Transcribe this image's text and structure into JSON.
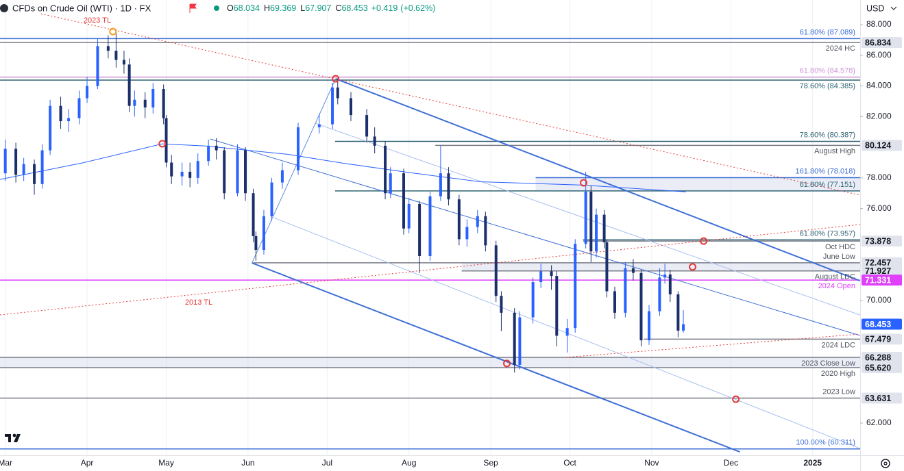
{
  "header": {
    "symbol": "CFDs on Crude Oil (WTI) · 1D · FX",
    "ohlc": [
      {
        "key": "O",
        "value": 68.034
      },
      {
        "key": "H",
        "value": 69.369
      },
      {
        "key": "L",
        "value": 67.907
      },
      {
        "key": "C",
        "value": 68.453
      }
    ],
    "change": {
      "value": 0.419,
      "label": "+0.419"
    },
    "change_pct": {
      "value": 0.62,
      "label": "(+0.62%)"
    },
    "currency": "USD"
  },
  "chart_data": {
    "type": "candlestick",
    "xlim": [
      -2,
      324
    ],
    "ylim": [
      59.9,
      89.61
    ],
    "xticks": [
      {
        "value": 0,
        "label": "Mar"
      },
      {
        "value": 31,
        "label": "Apr"
      },
      {
        "value": 61,
        "label": "May"
      },
      {
        "value": 92,
        "label": "Jun"
      },
      {
        "value": 122,
        "label": "Jul"
      },
      {
        "value": 153,
        "label": "Aug"
      },
      {
        "value": 184,
        "label": "Sep"
      },
      {
        "value": 214,
        "label": "Oct"
      },
      {
        "value": 245,
        "label": "Nov"
      },
      {
        "value": 275,
        "label": "Dec"
      },
      {
        "value": 306,
        "label": "2025"
      }
    ],
    "yticks": [
      {
        "value": 88,
        "label": "88.000"
      },
      {
        "value": 86,
        "label": "86.000"
      },
      {
        "value": 84,
        "label": "84.000"
      },
      {
        "value": 82,
        "label": "82.000"
      },
      {
        "value": 78,
        "label": "78.000"
      },
      {
        "value": 76,
        "label": "76.000"
      },
      {
        "value": 70,
        "label": "70.000"
      },
      {
        "value": 62,
        "label": "62.000"
      }
    ],
    "grid": "vertical",
    "up_color": "#2962ff",
    "down_color": "#1a2f6b",
    "x": [
      0,
      4,
      7,
      11,
      14,
      17,
      21,
      24,
      28,
      31,
      35,
      39,
      42,
      45,
      47,
      49,
      53,
      56,
      60,
      61,
      63,
      67,
      70,
      73,
      77,
      80,
      83,
      88,
      91,
      94,
      95,
      98,
      101,
      105,
      111,
      119,
      124,
      126,
      131,
      137,
      140,
      144,
      146,
      151,
      153,
      157,
      161,
      165,
      168,
      172,
      175,
      179,
      182,
      186,
      188,
      193,
      195,
      200,
      203,
      207,
      209,
      213,
      216,
      220,
      222,
      224,
      227,
      228,
      231,
      235,
      238,
      241,
      244,
      248,
      250,
      252,
      255,
      257
    ],
    "open": [
      78.3,
      79.9,
      78.2,
      78.9,
      77.6,
      79.8,
      82.7,
      81.7,
      81.9,
      83.2,
      84.0,
      86.6,
      86.3,
      85.7,
      85.4,
      82.7,
      83.1,
      82.6,
      83.8,
      81.9,
      79.0,
      78.1,
      78.4,
      78.0,
      79.1,
      80.1,
      79.8,
      77.0,
      79.8,
      77.0,
      74.2,
      73.3,
      75.5,
      77.7,
      78.5,
      81.3,
      81.5,
      83.9,
      83.2,
      82.1,
      80.7,
      80.1,
      77.0,
      78.3,
      74.7,
      76.3,
      72.9,
      76.8,
      78.3,
      76.6,
      74.0,
      74.8,
      75.5,
      73.6,
      70.3,
      69.2,
      65.8,
      68.9,
      71.2,
      71.9,
      71.6,
      67.7,
      68.2,
      73.7,
      77.1,
      73.2,
      75.6,
      73.8,
      70.6,
      69.2,
      72.1,
      71.8,
      67.4,
      69.3,
      71.5,
      71.7,
      70.4,
      68.034
    ],
    "high": [
      80.5,
      80.3,
      79.3,
      79.2,
      80.2,
      83.1,
      83.3,
      82.5,
      83.7,
      84.6,
      87.1,
      87.3,
      87.7,
      86.3,
      85.8,
      83.7,
      83.6,
      84.2,
      84.1,
      82.1,
      79.5,
      79.0,
      79.0,
      79.6,
      80.5,
      80.6,
      80.0,
      80.2,
      80.0,
      77.3,
      74.5,
      75.9,
      78.0,
      79.0,
      81.6,
      82.2,
      84.2,
      84.5,
      83.6,
      82.5,
      81.3,
      80.4,
      78.7,
      78.6,
      76.7,
      76.5,
      77.1,
      80.1,
      78.7,
      76.9,
      75.3,
      75.9,
      75.8,
      73.9,
      70.6,
      69.5,
      69.3,
      71.5,
      72.4,
      72.3,
      71.9,
      68.8,
      74.0,
      78.4,
      77.5,
      76.0,
      75.9,
      74.0,
      70.9,
      72.5,
      72.7,
      72.0,
      69.7,
      72.1,
      72.4,
      72.0,
      70.6,
      69.369
    ],
    "low": [
      77.8,
      77.7,
      77.8,
      76.9,
      77.3,
      79.5,
      81.2,
      81.0,
      81.5,
      82.9,
      83.8,
      85.8,
      85.2,
      84.8,
      82.3,
      82.0,
      81.9,
      82.2,
      81.5,
      78.7,
      77.6,
      77.5,
      77.4,
      77.6,
      78.8,
      79.2,
      76.6,
      76.8,
      76.5,
      73.8,
      72.6,
      73.0,
      75.2,
      77.3,
      78.2,
      80.9,
      81.2,
      82.8,
      81.7,
      80.3,
      79.6,
      76.6,
      76.7,
      74.3,
      74.4,
      71.8,
      72.6,
      76.5,
      76.2,
      73.6,
      73.5,
      74.4,
      73.2,
      69.9,
      68.0,
      65.3,
      65.5,
      68.5,
      70.8,
      70.7,
      67.0,
      66.6,
      67.9,
      73.4,
      72.5,
      72.8,
      73.4,
      70.2,
      68.8,
      68.9,
      71.3,
      67.0,
      67.1,
      69.0,
      71.1,
      69.9,
      67.6,
      67.907
    ],
    "close": [
      79.9,
      78.2,
      78.9,
      77.6,
      79.8,
      82.7,
      81.7,
      81.9,
      83.2,
      84.0,
      86.6,
      86.3,
      85.7,
      85.4,
      82.7,
      83.1,
      82.6,
      83.8,
      81.9,
      79.0,
      78.1,
      78.4,
      78.0,
      79.1,
      80.1,
      79.8,
      77.0,
      79.8,
      77.0,
      74.2,
      73.3,
      75.5,
      77.7,
      78.5,
      81.3,
      81.5,
      83.9,
      83.2,
      82.1,
      80.7,
      80.1,
      77.0,
      78.3,
      74.7,
      76.3,
      72.9,
      76.8,
      78.3,
      76.6,
      74.0,
      74.8,
      75.5,
      73.6,
      70.3,
      69.2,
      65.8,
      68.9,
      71.2,
      71.9,
      71.6,
      67.7,
      68.2,
      73.7,
      77.1,
      73.2,
      75.6,
      73.8,
      70.6,
      69.2,
      72.1,
      71.8,
      67.4,
      69.3,
      71.5,
      71.7,
      70.4,
      68.034,
      68.453
    ],
    "last_price_color": "#2962ff",
    "sma": {
      "color": "#2962ff",
      "x": [
        -2,
        29,
        59.5,
        76,
        107,
        128,
        154,
        180,
        219,
        258
      ],
      "values": [
        77.9,
        78.97,
        80.22,
        80.08,
        79.54,
        78.96,
        78.33,
        77.75,
        77.53,
        77.09
      ]
    },
    "levels": [
      {
        "value": 87.089,
        "color": "#3d6fd6",
        "note": "61.80% (87.089)",
        "note_pos": "above"
      },
      {
        "value": 86.834,
        "color": "#787b86",
        "note": "2024 HC",
        "note_pos": "below",
        "tag": "86.834"
      },
      {
        "value": 84.578,
        "color": "#ce93d8",
        "note": "61.80% (84.578)",
        "note_pos": "above"
      },
      {
        "value": 84.385,
        "color": "#2e6373",
        "note": "78.60% (84.385)",
        "note_pos": "below"
      },
      {
        "value": 80.387,
        "color": "#2e6373",
        "note": "78.60% (80.387)",
        "note_pos": "above",
        "from": 125
      },
      {
        "value": 80.124,
        "color": "#787b86",
        "note": "August High",
        "note_pos": "below",
        "tag": "80.124",
        "from": 163
      },
      {
        "value": 78.018,
        "color": "#3d6fd6",
        "note": "161.80% (78.018)",
        "note_pos": "above",
        "from": 201,
        "fill_to_next": true
      },
      {
        "value": 77.151,
        "color": "#2e6373",
        "note": "61.80% (77.151)",
        "note_pos": "above",
        "from": 125
      },
      {
        "value": 73.957,
        "color": "#2e6373",
        "note": "61.80% (73.957)",
        "note_pos": "above",
        "from": 219
      },
      {
        "value": 73.878,
        "color": "#787b86",
        "note": "Oct HDC",
        "note_pos": "below",
        "tag": "73.878",
        "from": 219
      },
      {
        "value": 72.457,
        "color": "#787b86",
        "note": "June Low",
        "note_pos": "above",
        "tag": "72.457",
        "from": 94,
        "fill_to_next": true
      },
      {
        "value": 71.927,
        "color": "#787b86",
        "note": "August LDC",
        "note_pos": "below",
        "tag": "71.927",
        "from": 173
      },
      {
        "value": 71.331,
        "color": "#e040fb",
        "note": "2024 Open",
        "note_pos": "below",
        "tag": "71.331"
      },
      {
        "value": 67.479,
        "color": "#787b86",
        "note": "2024 LDC",
        "note_pos": "below",
        "tag": "67.479",
        "from": 242
      },
      {
        "value": 66.288,
        "color": "#787b86",
        "note": "2023 Close Low",
        "note_pos": "below",
        "tag": "66.288",
        "fill_to_next": true
      },
      {
        "value": 65.62,
        "color": "#787b86",
        "note": "2020 High",
        "note_pos": "below",
        "tag": "65.620"
      },
      {
        "value": 63.631,
        "color": "#787b86",
        "note": "2023 Low",
        "note_pos": "above",
        "tag": "63.631"
      },
      {
        "value": 60.311,
        "color": "#3d6fd6",
        "note": "100.00% (60.311)",
        "note_pos": "above"
      }
    ],
    "trendlines": [
      {
        "points": [
          [
            125.2,
            84.47
          ],
          [
            323.9,
            71.29
          ]
        ],
        "color": "#3d6fd6",
        "width": 2
      },
      {
        "points": [
          [
            93.5,
            72.45
          ],
          [
            278.4,
            60.12
          ]
        ],
        "color": "#3d6fd6",
        "width": 2
      },
      {
        "points": [
          [
            77.7,
            80.54
          ],
          [
            323.9,
            67.72
          ]
        ],
        "color": "#3d6fd6",
        "width": 1
      },
      {
        "points": [
          [
            117.4,
            81.57
          ],
          [
            323.9,
            69.06
          ]
        ],
        "color": "#a9bff0",
        "width": 1
      },
      {
        "points": [
          [
            101.8,
            75.4
          ],
          [
            323.9,
            60.35
          ]
        ],
        "color": "#a9bff0",
        "width": 1
      },
      {
        "points": [
          [
            93.5,
            72.45
          ],
          [
            125.2,
            84.47
          ]
        ],
        "color": "#5b8de0",
        "width": 1
      },
      {
        "points": [
          [
            13.5,
            88.71
          ],
          [
            323.9,
            76.88
          ]
        ],
        "color": "#e53935",
        "width": 1,
        "dash": true
      },
      {
        "points": [
          [
            -2,
            69.06
          ],
          [
            323.9,
            74.96
          ]
        ],
        "color": "#e53935",
        "width": 1,
        "dash": true
      },
      {
        "points": [
          [
            212.5,
            66.29
          ],
          [
            323.9,
            67.81
          ]
        ],
        "color": "#e53935",
        "width": 1,
        "dash": true
      }
    ],
    "annotations": [
      {
        "text": "2023 TL",
        "color": "#e53935"
      },
      {
        "text": "2013 TL",
        "color": "#e53935"
      }
    ],
    "markers": [
      {
        "x": 40.8,
        "y": 87.55,
        "color": "#f59c1a"
      },
      {
        "x": 125.2,
        "y": 84.47,
        "color": "#e53935"
      },
      {
        "x": 59.5,
        "y": 80.23,
        "color": "#e53935"
      },
      {
        "x": 219.2,
        "y": 77.68,
        "color": "#e53935"
      },
      {
        "x": 264.7,
        "y": 73.88,
        "color": "#e53935"
      },
      {
        "x": 260.5,
        "y": 72.19,
        "color": "#e53935"
      },
      {
        "x": 190.1,
        "y": 65.89,
        "color": "#e53935"
      },
      {
        "x": 276.9,
        "y": 63.56,
        "color": "#e53935"
      }
    ]
  }
}
